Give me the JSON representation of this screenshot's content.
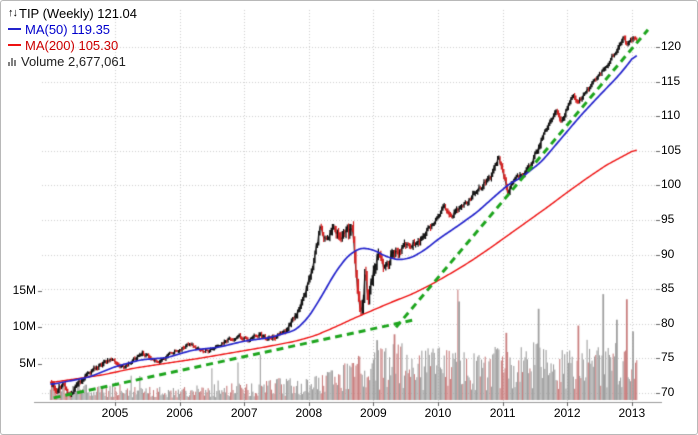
{
  "chart_data": {
    "type": "candlestick",
    "title": "TIP (Weekly) 121.04",
    "legend": {
      "title": "TIP (Weekly) 121.04",
      "ma50": "MA(50) 119.35",
      "ma200": "MA(200) 105.30",
      "volume": "Volume 2,677,061"
    },
    "x_axis": {
      "ticks": [
        2005,
        2006,
        2007,
        2008,
        2009,
        2010,
        2011,
        2012,
        2013
      ],
      "labels": [
        "2005",
        "2006",
        "2007",
        "2008",
        "2009",
        "2010",
        "2011",
        "2012",
        "2013"
      ]
    },
    "price_axis": {
      "min": 70,
      "max": 120,
      "step": 5,
      "ticks": [
        70,
        75,
        80,
        85,
        90,
        95,
        100,
        105,
        110,
        115,
        120
      ],
      "labels": [
        "70",
        "75",
        "80",
        "85",
        "90",
        "95",
        "100",
        "105",
        "110",
        "115",
        "120"
      ]
    },
    "volume_axis": {
      "ticks": [
        5,
        10,
        15
      ],
      "labels": [
        "5M",
        "10M",
        "15M"
      ]
    },
    "series": {
      "price_anchors": [
        [
          2004.0,
          71.8
        ],
        [
          2004.1,
          70.3
        ],
        [
          2004.18,
          71.4
        ],
        [
          2004.3,
          69.8
        ],
        [
          2004.45,
          71.6
        ],
        [
          2004.6,
          73.0
        ],
        [
          2004.75,
          73.8
        ],
        [
          2004.9,
          74.8
        ],
        [
          2005.05,
          74.2
        ],
        [
          2005.15,
          73.6
        ],
        [
          2005.3,
          74.9
        ],
        [
          2005.42,
          75.8
        ],
        [
          2005.55,
          75.0
        ],
        [
          2005.7,
          74.6
        ],
        [
          2005.85,
          75.7
        ],
        [
          2006.0,
          76.3
        ],
        [
          2006.15,
          77.1
        ],
        [
          2006.3,
          76.3
        ],
        [
          2006.45,
          76.0
        ],
        [
          2006.6,
          76.9
        ],
        [
          2006.78,
          77.9
        ],
        [
          2006.92,
          78.2
        ],
        [
          2007.05,
          77.6
        ],
        [
          2007.2,
          78.5
        ],
        [
          2007.35,
          77.9
        ],
        [
          2007.5,
          78.3
        ],
        [
          2007.65,
          79.3
        ],
        [
          2007.8,
          81.2
        ],
        [
          2007.95,
          84.8
        ],
        [
          2008.08,
          89.0
        ],
        [
          2008.18,
          94.3
        ],
        [
          2008.28,
          91.6
        ],
        [
          2008.38,
          93.9
        ],
        [
          2008.48,
          92.5
        ],
        [
          2008.58,
          93.6
        ],
        [
          2008.68,
          92.8
        ],
        [
          2008.76,
          85.0
        ],
        [
          2008.82,
          81.2
        ],
        [
          2008.87,
          87.6
        ],
        [
          2008.92,
          83.6
        ],
        [
          2009.0,
          87.6
        ],
        [
          2009.08,
          90.4
        ],
        [
          2009.16,
          87.9
        ],
        [
          2009.26,
          89.6
        ],
        [
          2009.4,
          90.6
        ],
        [
          2009.55,
          91.4
        ],
        [
          2009.7,
          92.0
        ],
        [
          2009.85,
          93.6
        ],
        [
          2010.0,
          95.6
        ],
        [
          2010.1,
          96.9
        ],
        [
          2010.2,
          95.7
        ],
        [
          2010.32,
          96.6
        ],
        [
          2010.45,
          97.6
        ],
        [
          2010.6,
          99.2
        ],
        [
          2010.75,
          100.7
        ],
        [
          2010.86,
          102.0
        ],
        [
          2010.93,
          104.0
        ],
        [
          2011.0,
          102.4
        ],
        [
          2011.08,
          99.2
        ],
        [
          2011.16,
          100.2
        ],
        [
          2011.26,
          101.4
        ],
        [
          2011.36,
          102.1
        ],
        [
          2011.46,
          103.6
        ],
        [
          2011.56,
          105.6
        ],
        [
          2011.66,
          107.6
        ],
        [
          2011.76,
          109.6
        ],
        [
          2011.83,
          110.9
        ],
        [
          2011.9,
          109.2
        ],
        [
          2012.0,
          111.2
        ],
        [
          2012.08,
          113.1
        ],
        [
          2012.16,
          111.9
        ],
        [
          2012.26,
          112.9
        ],
        [
          2012.36,
          114.3
        ],
        [
          2012.46,
          115.6
        ],
        [
          2012.56,
          116.9
        ],
        [
          2012.66,
          117.6
        ],
        [
          2012.72,
          118.9
        ],
        [
          2012.8,
          120.2
        ],
        [
          2012.87,
          121.8
        ],
        [
          2012.93,
          120.1
        ],
        [
          2013.0,
          121.2
        ],
        [
          2013.08,
          121.0
        ]
      ],
      "ma50_anchors": [
        [
          2004.0,
          71.2
        ],
        [
          2004.6,
          72.3
        ],
        [
          2005.0,
          73.8
        ],
        [
          2005.4,
          74.8
        ],
        [
          2005.8,
          75.1
        ],
        [
          2006.2,
          76.2
        ],
        [
          2006.6,
          76.6
        ],
        [
          2007.0,
          77.5
        ],
        [
          2007.4,
          78.0
        ],
        [
          2007.8,
          79.1
        ],
        [
          2008.0,
          81.0
        ],
        [
          2008.2,
          84.0
        ],
        [
          2008.4,
          87.3
        ],
        [
          2008.6,
          89.8
        ],
        [
          2008.8,
          91.0
        ],
        [
          2009.0,
          90.7
        ],
        [
          2009.2,
          89.7
        ],
        [
          2009.4,
          89.2
        ],
        [
          2009.6,
          89.6
        ],
        [
          2009.8,
          90.7
        ],
        [
          2010.0,
          92.2
        ],
        [
          2010.3,
          94.1
        ],
        [
          2010.6,
          96.1
        ],
        [
          2010.9,
          98.6
        ],
        [
          2011.1,
          100.2
        ],
        [
          2011.3,
          101.2
        ],
        [
          2011.6,
          103.4
        ],
        [
          2011.9,
          106.7
        ],
        [
          2012.2,
          110.0
        ],
        [
          2012.5,
          113.0
        ],
        [
          2012.8,
          115.9
        ],
        [
          2013.0,
          118.2
        ],
        [
          2013.08,
          119.35
        ]
      ],
      "ma200_anchors": [
        [
          2004.0,
          71.5
        ],
        [
          2004.8,
          72.6
        ],
        [
          2005.3,
          73.6
        ],
        [
          2005.8,
          74.3
        ],
        [
          2006.3,
          75.0
        ],
        [
          2006.8,
          75.8
        ],
        [
          2007.3,
          76.6
        ],
        [
          2007.8,
          77.5
        ],
        [
          2008.1,
          78.3
        ],
        [
          2008.4,
          79.5
        ],
        [
          2008.7,
          80.8
        ],
        [
          2009.0,
          82.0
        ],
        [
          2009.3,
          83.2
        ],
        [
          2009.6,
          84.3
        ],
        [
          2009.9,
          85.7
        ],
        [
          2010.2,
          87.3
        ],
        [
          2010.5,
          89.0
        ],
        [
          2010.8,
          90.9
        ],
        [
          2011.1,
          92.9
        ],
        [
          2011.4,
          94.9
        ],
        [
          2011.7,
          96.9
        ],
        [
          2012.0,
          99.0
        ],
        [
          2012.3,
          101.0
        ],
        [
          2012.6,
          102.9
        ],
        [
          2012.9,
          104.4
        ],
        [
          2013.08,
          105.3
        ]
      ],
      "trend_segments": [
        [
          [
            2004.05,
            69.3
          ],
          [
            2009.6,
            80.5
          ]
        ],
        [
          [
            2009.35,
            79.5
          ],
          [
            2013.25,
            122.5
          ]
        ]
      ],
      "volume_anchors": [
        [
          2004.0,
          1.6
        ],
        [
          2005.0,
          1.3
        ],
        [
          2006.0,
          1.1
        ],
        [
          2007.0,
          1.4
        ],
        [
          2007.8,
          2.0
        ],
        [
          2008.3,
          2.6
        ],
        [
          2008.7,
          3.6
        ],
        [
          2009.0,
          4.2
        ],
        [
          2009.3,
          5.2
        ],
        [
          2009.6,
          4.2
        ],
        [
          2010.0,
          4.4
        ],
        [
          2010.5,
          4.0
        ],
        [
          2011.0,
          4.4
        ],
        [
          2011.5,
          4.8
        ],
        [
          2012.0,
          4.6
        ],
        [
          2012.5,
          5.2
        ],
        [
          2012.9,
          5.6
        ],
        [
          2013.08,
          4.6
        ]
      ],
      "volume_spikes": [
        [
          2009.05,
          8.2
        ],
        [
          2009.32,
          9.0
        ],
        [
          2010.33,
          13.5
        ],
        [
          2011.05,
          9.2
        ],
        [
          2011.56,
          12.5
        ],
        [
          2012.18,
          10.2
        ],
        [
          2012.56,
          14.5
        ],
        [
          2012.76,
          11.0
        ],
        [
          2012.92,
          13.8
        ],
        [
          2013.02,
          9.4
        ]
      ],
      "volatility_anchors": [
        [
          2004.0,
          0.8
        ],
        [
          2005.0,
          0.55
        ],
        [
          2006.0,
          0.45
        ],
        [
          2007.0,
          0.5
        ],
        [
          2007.9,
          0.8
        ],
        [
          2008.4,
          1.1
        ],
        [
          2008.75,
          2.2
        ],
        [
          2009.1,
          1.6
        ],
        [
          2009.5,
          1.0
        ],
        [
          2010.0,
          0.7
        ],
        [
          2011.0,
          0.8
        ],
        [
          2011.9,
          0.7
        ],
        [
          2012.5,
          0.6
        ],
        [
          2013.08,
          0.7
        ]
      ]
    },
    "colors": {
      "price_up": "#111111",
      "price_down": "#d42020",
      "ma50": "#2424cc",
      "ma200": "#ee1111",
      "trend": "#1ea51e",
      "volume_up": "#a0a0a0",
      "volume_down": "#c98080",
      "grid": "#cfcfcf",
      "axis": "#9a9a9a",
      "text": "#000000"
    },
    "domain": {
      "data_start": 2004.0,
      "data_end": 2013.08
    }
  }
}
